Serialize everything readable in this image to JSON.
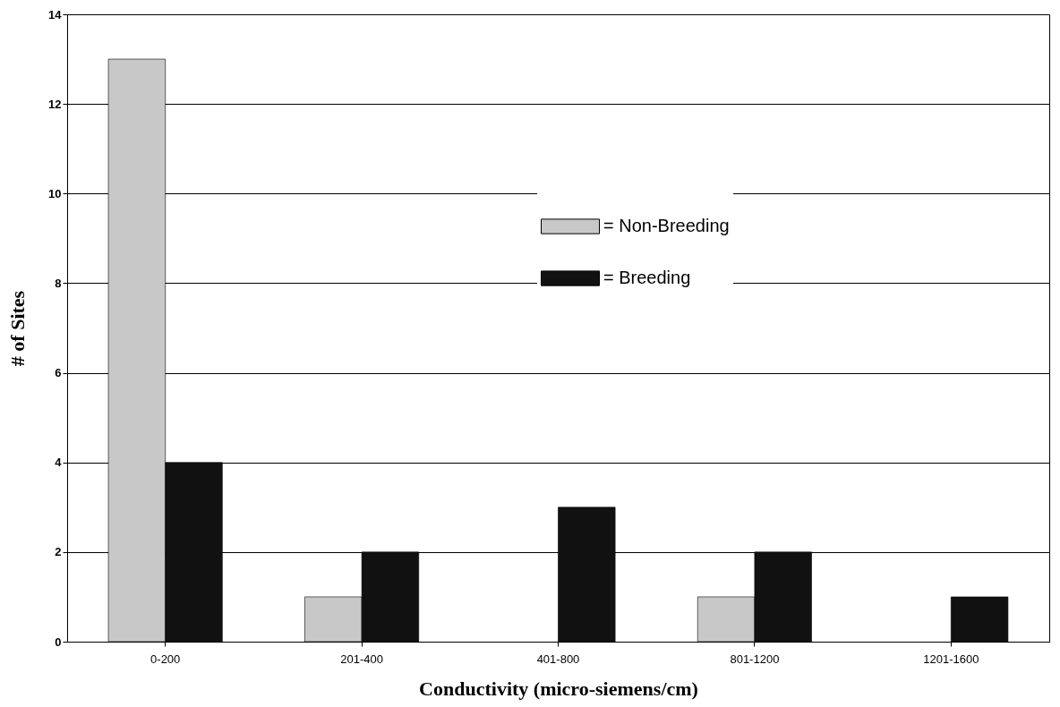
{
  "chart_data": {
    "type": "bar",
    "xlabel": "Conductivity (micro-siemens/cm)",
    "ylabel": "# of Sites",
    "categories": [
      "0-200",
      "201-400",
      "401-800",
      "801-1200",
      "1201-1600"
    ],
    "series": [
      {
        "name": "= Non-Breeding",
        "color": "#c8c8c8",
        "values": [
          13,
          1,
          0,
          1,
          0
        ]
      },
      {
        "name": "= Breeding",
        "color": "#111111",
        "values": [
          4,
          2,
          3,
          2,
          1
        ]
      }
    ],
    "ylim": [
      0,
      14
    ],
    "yticks": [
      0,
      2,
      4,
      6,
      8,
      10,
      12,
      14
    ],
    "grid": "y",
    "legend": "top right"
  }
}
